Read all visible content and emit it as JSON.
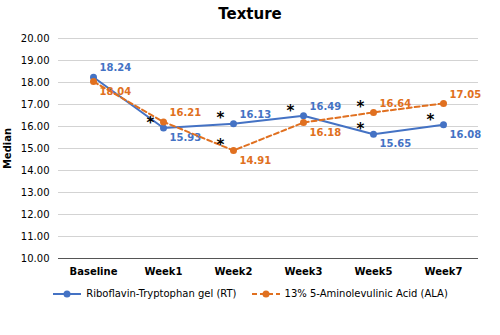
{
  "chart_data": {
    "type": "line",
    "title": "Texture",
    "ylabel": "Median",
    "categories": [
      "Baseline",
      "Week1",
      "Week2",
      "Week3",
      "Week5",
      "Week7"
    ],
    "series": [
      {
        "name": "Riboflavin-Tryptophan gel (RT)",
        "color": "#4472C4",
        "values": [
          18.24,
          15.93,
          16.13,
          16.49,
          15.65,
          16.08
        ],
        "line_style": "solid",
        "marker": "circle",
        "annotations": [
          null,
          "*",
          "*",
          "*",
          "*",
          "*"
        ]
      },
      {
        "name": "13% 5-Aminolevulinic Acid (ALA)",
        "color": "#E07020",
        "values": [
          18.04,
          16.21,
          14.91,
          16.18,
          16.64,
          17.05
        ],
        "line_style": "dashed",
        "marker": "circle",
        "annotations": [
          null,
          null,
          "*",
          null,
          "*",
          null
        ]
      }
    ],
    "ylim": [
      10,
      20
    ],
    "yticks": [
      {
        "value": 10,
        "label": "10.00"
      },
      {
        "value": 11,
        "label": "11.00"
      },
      {
        "value": 12,
        "label": "12.00"
      },
      {
        "value": 13,
        "label": "13.00"
      },
      {
        "value": 14,
        "label": "14.00"
      },
      {
        "value": 15,
        "label": "15.00"
      },
      {
        "value": 16,
        "label": "16.00"
      },
      {
        "value": 17,
        "label": "17.00"
      },
      {
        "value": 18,
        "label": "18.00"
      },
      {
        "value": 19,
        "label": "19.00"
      },
      {
        "value": 20,
        "label": "20.00"
      }
    ],
    "grid": true,
    "legend": "bottom",
    "data_labels": true
  }
}
